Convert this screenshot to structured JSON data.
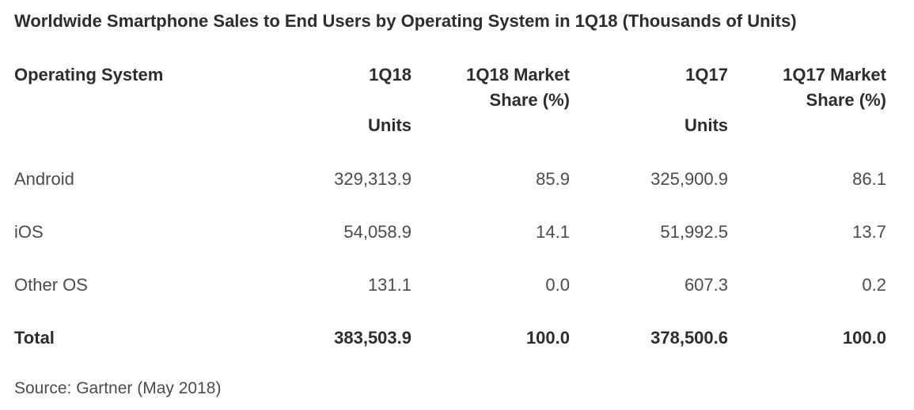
{
  "title": "Worldwide Smartphone Sales to End Users by Operating System in 1Q18 (Thousands of Units)",
  "source_note": "Source: Gartner (May 2018)",
  "colors": {
    "background": "#ffffff",
    "heading_text": "#2d2d2d",
    "body_text": "#4b4b4b"
  },
  "table": {
    "headers": [
      {
        "line1": "Operating System",
        "line2": "",
        "line3": ""
      },
      {
        "line1": "1Q18",
        "line2": "",
        "line3": "Units"
      },
      {
        "line1": "1Q18 Market",
        "line2": "Share (%)",
        "line3": ""
      },
      {
        "line1": "1Q17",
        "line2": "",
        "line3": "Units"
      },
      {
        "line1": "1Q17 Market",
        "line2": "Share (%)",
        "line3": ""
      }
    ],
    "rows": [
      {
        "os": "Android",
        "q18_units": "329,313.9",
        "q18_share": "85.9",
        "q17_units": "325,900.9",
        "q17_share": "86.1"
      },
      {
        "os": "iOS",
        "q18_units": "54,058.9",
        "q18_share": "14.1",
        "q17_units": "51,992.5",
        "q17_share": "13.7"
      },
      {
        "os": "Other OS",
        "q18_units": "131.1",
        "q18_share": "0.0",
        "q17_units": "607.3",
        "q17_share": "0.2"
      },
      {
        "os": "Total",
        "q18_units": "383,503.9",
        "q18_share": "100.0",
        "q17_units": "378,500.6",
        "q17_share": "100.0"
      }
    ]
  },
  "chart_data": {
    "type": "table",
    "title": "Worldwide Smartphone Sales to End Users by Operating System in 1Q18 (Thousands of Units)",
    "columns": [
      "Operating System",
      "1Q18 Units",
      "1Q18 Market Share (%)",
      "1Q17 Units",
      "1Q17 Market Share (%)"
    ],
    "rows": [
      {
        "operating_system": "Android",
        "units_1q18": 329313.9,
        "market_share_1q18": 85.9,
        "units_1q17": 325900.9,
        "market_share_1q17": 86.1
      },
      {
        "operating_system": "iOS",
        "units_1q18": 54058.9,
        "market_share_1q18": 14.1,
        "units_1q17": 51992.5,
        "market_share_1q17": 13.7
      },
      {
        "operating_system": "Other OS",
        "units_1q18": 131.1,
        "market_share_1q18": 0.0,
        "units_1q17": 607.3,
        "market_share_1q17": 0.2
      },
      {
        "operating_system": "Total",
        "units_1q18": 383503.9,
        "market_share_1q18": 100.0,
        "units_1q17": 378500.6,
        "market_share_1q17": 100.0
      }
    ],
    "annotations": [
      "Source: Gartner (May 2018)"
    ],
    "units": "Thousands of Units"
  }
}
